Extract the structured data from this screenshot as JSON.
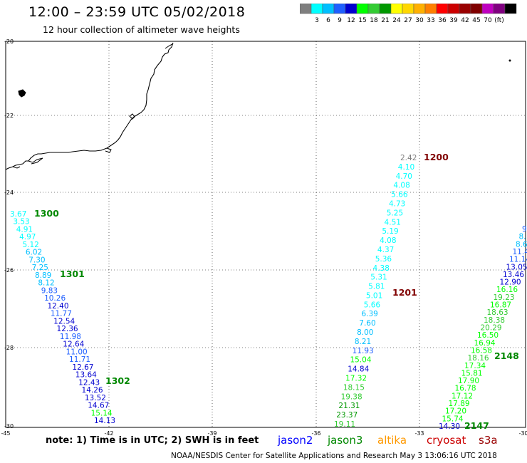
{
  "header": {
    "title": "12:00 – 23:59 UTC 05/02/2018",
    "subtitle": "12 hour collection of altimeter wave heights"
  },
  "color_scale": {
    "colors": [
      "#7f7f7f",
      "#00ffff",
      "#00bfff",
      "#1f5fff",
      "#0000d0",
      "#00ff00",
      "#33cc33",
      "#009900",
      "#ffff00",
      "#ffd700",
      "#ffb000",
      "#ff7f00",
      "#ff0000",
      "#cc0000",
      "#990000",
      "#800000",
      "#bf00bf",
      "#800080",
      "#000000"
    ],
    "labels": [
      "3",
      "6",
      "9",
      "12",
      "15",
      "18",
      "21",
      "24",
      "27",
      "30",
      "33",
      "36",
      "39",
      "42",
      "45",
      "70",
      "(ft)"
    ]
  },
  "axes": {
    "lon_ticks": [
      "-45",
      "-42",
      "-39",
      "-36",
      "-33",
      "-30"
    ],
    "lat_ticks": [
      "-20",
      "-22",
      "-24",
      "-26",
      "-28",
      "-30"
    ]
  },
  "passes": [
    {
      "label": "1200",
      "satellite": "cryosat"
    },
    {
      "label": "1201",
      "satellite": "cryosat"
    },
    {
      "label": "1300",
      "satellite": "jason3"
    },
    {
      "label": "1301",
      "satellite": "jason3"
    },
    {
      "label": "1302",
      "satellite": "jason3"
    },
    {
      "label": "2148",
      "satellite": "jason3"
    },
    {
      "label": "2147",
      "satellite": "jason3"
    }
  ],
  "wave_heights": {
    "left_track": [
      "3.67",
      "3.53",
      "4.91",
      "4.97",
      "5.12",
      "6.02",
      "7.30",
      "7.25",
      "8.89",
      "8.12",
      "9.83",
      "10.26",
      "12.40",
      "11.77",
      "12.54",
      "12.36",
      "11.98",
      "12.64",
      "11.00",
      "11.71",
      "12.67",
      "13.64",
      "12.43",
      "14.26",
      "13.52",
      "14.67",
      "15.14",
      "14.13"
    ],
    "center_track": [
      "2.42",
      "4.10",
      "4.70",
      "4.08",
      "5.66",
      "4.73",
      "5.25",
      "4.51",
      "5.19",
      "4.08",
      "4.37",
      "5.36",
      "4.38",
      "5.31",
      "5.81",
      "5.01",
      "5.66",
      "6.39",
      "7.60",
      "8.00",
      "8.21",
      "11.93",
      "15.04",
      "14.84",
      "17.32",
      "18.15",
      "19.38",
      "21.31",
      "23.37",
      "19.11"
    ],
    "right_track": [
      "9",
      "8.",
      "8.6",
      "11.4",
      "11.14",
      "13.05",
      "13.46",
      "12.90",
      "16.16",
      "19.23",
      "16.87",
      "18.63",
      "18.38",
      "20.29",
      "16.50",
      "16.94",
      "16.58",
      "18.16",
      "17.34",
      "15.81",
      "17.90",
      "16.78",
      "17.12",
      "17.89",
      "17.20",
      "15.74",
      "14.30"
    ]
  },
  "footer": {
    "note": "note:  1) Time is in UTC;  2) SWH is in feet",
    "legend": [
      {
        "name": "jason2",
        "color": "#0000ff"
      },
      {
        "name": "jason3",
        "color": "#008800"
      },
      {
        "name": "altika",
        "color": "#ff9900"
      },
      {
        "name": "cryosat",
        "color": "#cc0000"
      },
      {
        "name": "s3a",
        "color": "#990000"
      }
    ],
    "credit": "NOAA/NESDIS Center for Satellite Applications and Research     May  3 13:06:16 UTC 2018"
  }
}
